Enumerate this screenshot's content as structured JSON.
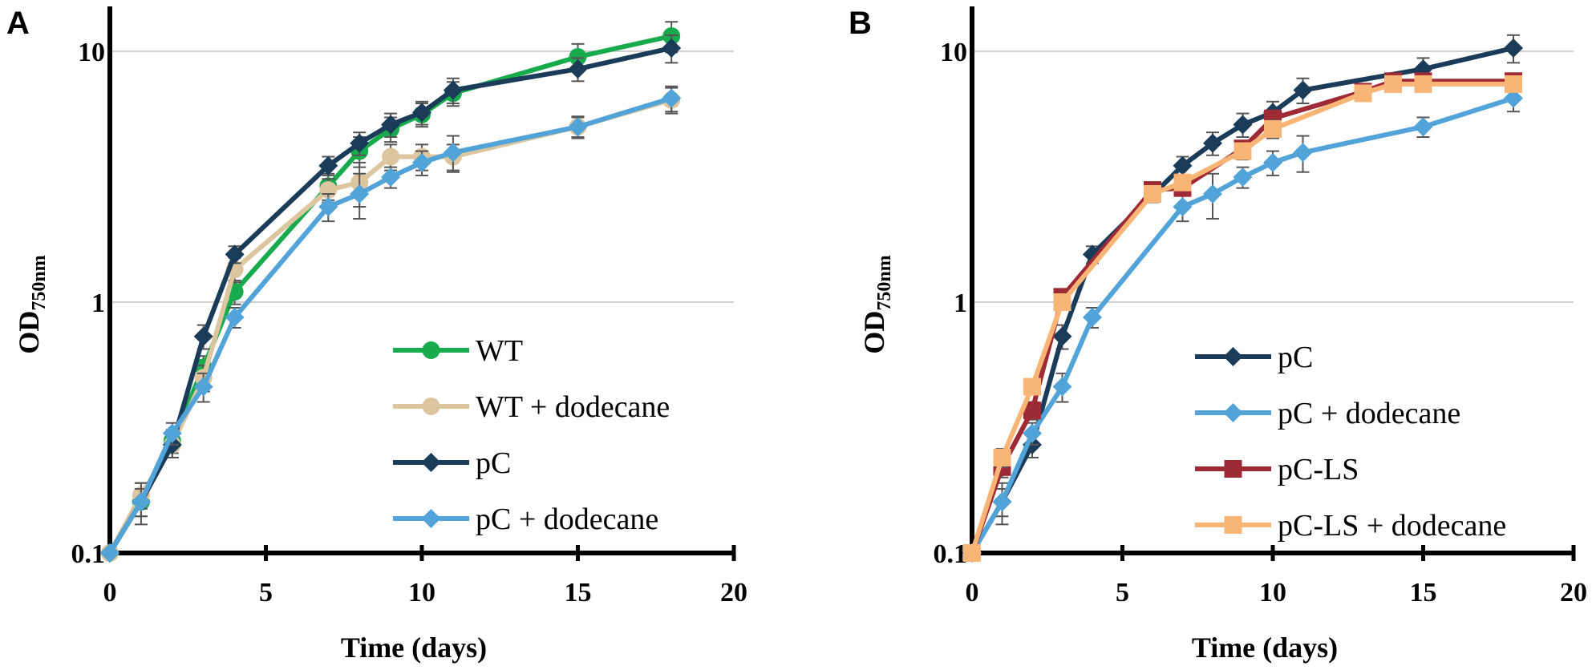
{
  "chart_data": [
    {
      "type": "line",
      "panel": "A",
      "title": "",
      "xlabel": "Time (days)",
      "ylabel_main": "OD",
      "ylabel_sub": "750nm",
      "xlim": [
        0,
        20
      ],
      "ylim": [
        0.1,
        15
      ],
      "yscale": "log",
      "x_ticks": [
        0,
        5,
        10,
        15,
        20
      ],
      "y_ticks": [
        {
          "value": 0.1,
          "label": "0.1"
        },
        {
          "value": 1,
          "label": "1"
        },
        {
          "value": 10,
          "label": "10"
        }
      ],
      "grid": "horizontal",
      "legend_position": "lower-right",
      "series": [
        {
          "name": "WT",
          "color": "#17ab4d",
          "marker": "circle",
          "x": [
            0,
            1,
            2,
            3,
            4,
            7,
            8,
            9,
            10,
            11,
            15,
            18
          ],
          "y": [
            0.1,
            0.16,
            0.28,
            0.55,
            1.1,
            2.9,
            4.0,
            4.9,
            5.6,
            6.8,
            9.5,
            11.5
          ],
          "err": [
            0,
            0.02,
            0.03,
            0.06,
            0.12,
            0.35,
            0.55,
            0.55,
            0.6,
            0.75,
            1.2,
            1.6
          ]
        },
        {
          "name": "WT + dodecane",
          "color": "#dcc6a0",
          "marker": "circle",
          "x": [
            0,
            1,
            2,
            3,
            4,
            7,
            8,
            9,
            10,
            11,
            15,
            18
          ],
          "y": [
            0.1,
            0.17,
            0.27,
            0.5,
            1.35,
            2.8,
            3.0,
            3.8,
            3.8,
            3.8,
            5.0,
            6.4
          ],
          "err": [
            0,
            0.02,
            0.03,
            0.06,
            0.15,
            0.3,
            0.6,
            0.45,
            0.45,
            0.45,
            0.5,
            0.75
          ]
        },
        {
          "name": "pC",
          "color": "#1b3c59",
          "marker": "diamond",
          "x": [
            0,
            1,
            2,
            3,
            4,
            7,
            8,
            9,
            10,
            11,
            15,
            18
          ],
          "y": [
            0.1,
            0.16,
            0.27,
            0.73,
            1.55,
            3.5,
            4.3,
            5.1,
            5.7,
            7.0,
            8.5,
            10.3
          ],
          "err": [
            0,
            0.02,
            0.03,
            0.08,
            0.12,
            0.3,
            0.45,
            0.55,
            0.6,
            0.8,
            0.9,
            1.3
          ]
        },
        {
          "name": "pC + dodecane",
          "color": "#52a3d8",
          "marker": "diamond",
          "x": [
            0,
            1,
            2,
            3,
            4,
            7,
            8,
            9,
            10,
            11,
            15,
            18
          ],
          "y": [
            0.1,
            0.16,
            0.3,
            0.46,
            0.87,
            2.4,
            2.7,
            3.15,
            3.6,
            3.95,
            5.0,
            6.5
          ],
          "err": [
            0,
            0.03,
            0.03,
            0.06,
            0.08,
            0.3,
            0.55,
            0.3,
            0.4,
            0.65,
            0.45,
            0.75
          ]
        }
      ]
    },
    {
      "type": "line",
      "panel": "B",
      "title": "",
      "xlabel": "Time (days)",
      "ylabel_main": "OD",
      "ylabel_sub": "750nm",
      "xlim": [
        0,
        20
      ],
      "ylim": [
        0.1,
        15
      ],
      "yscale": "log",
      "x_ticks": [
        0,
        5,
        10,
        15,
        20
      ],
      "y_ticks": [
        {
          "value": 0.1,
          "label": "0.1"
        },
        {
          "value": 1,
          "label": "1"
        },
        {
          "value": 10,
          "label": "10"
        }
      ],
      "grid": "horizontal",
      "legend_position": "lower-right",
      "series": [
        {
          "name": "pC",
          "color": "#1b3c59",
          "marker": "diamond",
          "x": [
            0,
            1,
            2,
            3,
            4,
            7,
            8,
            9,
            10,
            11,
            15,
            18
          ],
          "y": [
            0.1,
            0.16,
            0.27,
            0.73,
            1.55,
            3.5,
            4.3,
            5.1,
            5.7,
            7.0,
            8.5,
            10.3
          ],
          "err": [
            0,
            0.02,
            0.03,
            0.08,
            0.12,
            0.3,
            0.45,
            0.55,
            0.6,
            0.8,
            0.9,
            1.3
          ]
        },
        {
          "name": "pC + dodecane",
          "color": "#52a3d8",
          "marker": "diamond",
          "x": [
            0,
            1,
            2,
            3,
            4,
            7,
            8,
            9,
            10,
            11,
            15,
            18
          ],
          "y": [
            0.1,
            0.16,
            0.3,
            0.46,
            0.87,
            2.4,
            2.7,
            3.15,
            3.6,
            3.95,
            5.0,
            6.5
          ],
          "err": [
            0,
            0.03,
            0.03,
            0.06,
            0.08,
            0.3,
            0.55,
            0.3,
            0.4,
            0.65,
            0.45,
            0.75
          ]
        },
        {
          "name": "pC-LS",
          "color": "#9e2a35",
          "marker": "square",
          "x": [
            0,
            1,
            2,
            3,
            6,
            7,
            9,
            10,
            13,
            14,
            15,
            18
          ],
          "y": [
            0.1,
            0.22,
            0.37,
            1.05,
            2.8,
            2.85,
            4.1,
            5.4,
            6.9,
            7.6,
            7.6,
            7.6
          ],
          "err": [
            0,
            0.02,
            0.03,
            0.06,
            0.2,
            0.2,
            0.3,
            0.4,
            0.4,
            0.4,
            0.4,
            0.5
          ]
        },
        {
          "name": "pC-LS + dodecane",
          "color": "#f8b575",
          "marker": "square",
          "x": [
            0,
            1,
            2,
            3,
            6,
            7,
            9,
            10,
            13,
            14,
            15,
            18
          ],
          "y": [
            0.1,
            0.24,
            0.46,
            1.0,
            2.7,
            3.0,
            4.0,
            4.9,
            6.8,
            7.4,
            7.4,
            7.4
          ],
          "err": [
            0,
            0.02,
            0.03,
            0.06,
            0.2,
            0.2,
            0.3,
            0.4,
            0.4,
            0.4,
            0.4,
            0.5
          ]
        }
      ]
    }
  ]
}
